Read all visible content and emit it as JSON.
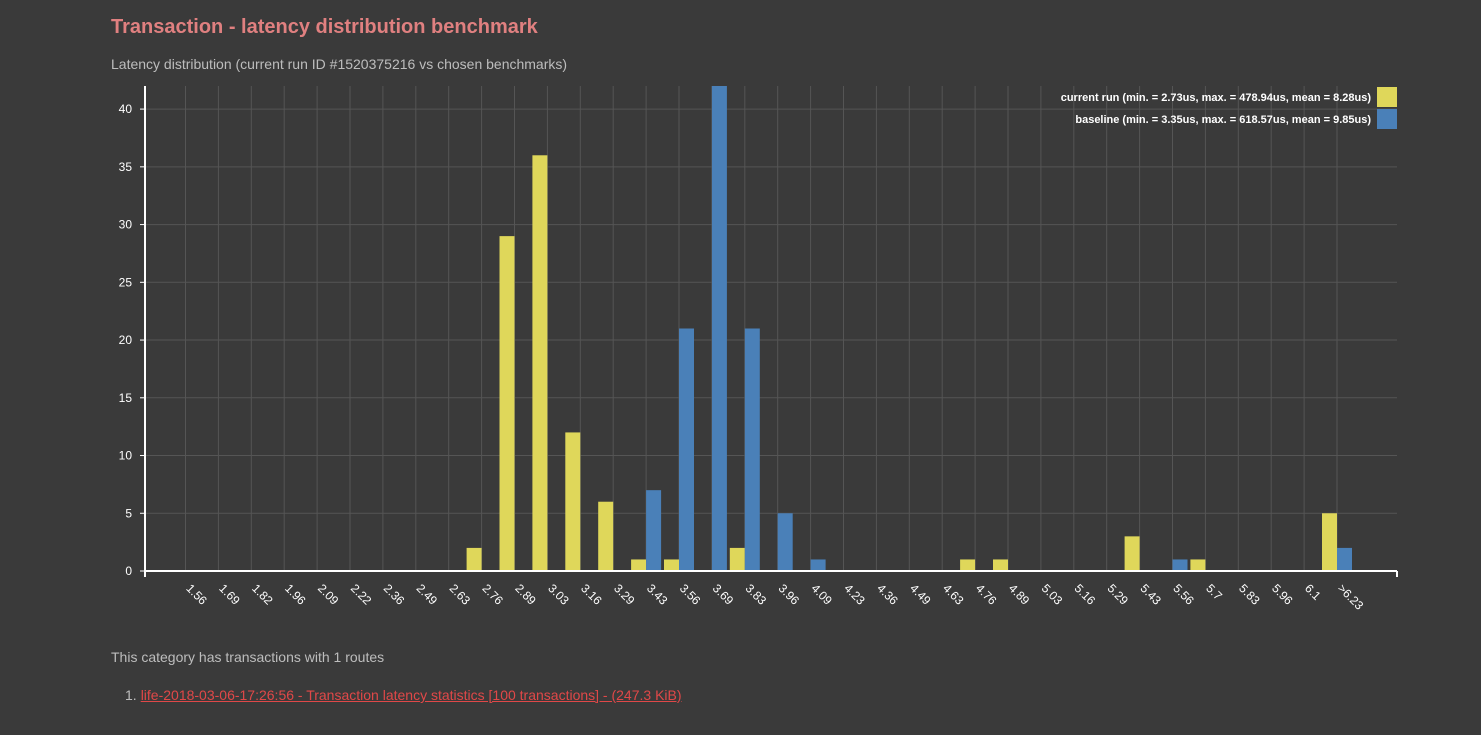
{
  "page": {
    "title": "Transaction - latency distribution benchmark",
    "subtitle": "Latency distribution (current run ID #1520375216 vs chosen benchmarks)",
    "info": "This category has transactions with 1 routes",
    "routes": [
      {
        "number": "1.",
        "label": "life-2018-03-06-17:26:56 - Transaction latency statistics [100 transactions] - (247.3 KiB)"
      }
    ]
  },
  "colors": {
    "current": "#dfd75a",
    "baseline": "#4a80b8",
    "grid": "#555555",
    "axis": "#ffffff"
  },
  "chart_data": {
    "type": "bar",
    "categories": [
      "1.56",
      "1.69",
      "1.82",
      "1.96",
      "2.09",
      "2.22",
      "2.36",
      "2.49",
      "2.63",
      "2.76",
      "2.89",
      "3.03",
      "3.16",
      "3.29",
      "3.43",
      "3.56",
      "3.69",
      "3.83",
      "3.96",
      "4.09",
      "4.23",
      "4.36",
      "4.49",
      "4.63",
      "4.76",
      "4.89",
      "5.03",
      "5.16",
      "5.29",
      "5.43",
      "5.56",
      "5.7",
      "5.83",
      "5.96",
      "6.1",
      ">6.23"
    ],
    "series": [
      {
        "name": "current run (min. = 2.73us, max. = 478.94us, mean = 8.28us)",
        "values": [
          0,
          0,
          0,
          0,
          0,
          0,
          0,
          0,
          0,
          2,
          29,
          36,
          12,
          6,
          1,
          1,
          0,
          2,
          0,
          0,
          0,
          0,
          0,
          0,
          1,
          1,
          0,
          0,
          0,
          3,
          0,
          1,
          0,
          0,
          0,
          5
        ]
      },
      {
        "name": "baseline (min. = 3.35us, max. = 618.57us, mean = 9.85us)",
        "values": [
          0,
          0,
          0,
          0,
          0,
          0,
          0,
          0,
          0,
          0,
          0,
          0,
          0,
          0,
          7,
          21,
          42,
          21,
          5,
          1,
          0,
          0,
          0,
          0,
          0,
          0,
          0,
          0,
          0,
          0,
          1,
          0,
          0,
          0,
          0,
          2
        ]
      }
    ],
    "yticks": [
      0,
      5,
      10,
      15,
      20,
      25,
      30,
      35,
      40
    ],
    "ylim": [
      0,
      42
    ],
    "grid": true,
    "legend": "top-right"
  }
}
